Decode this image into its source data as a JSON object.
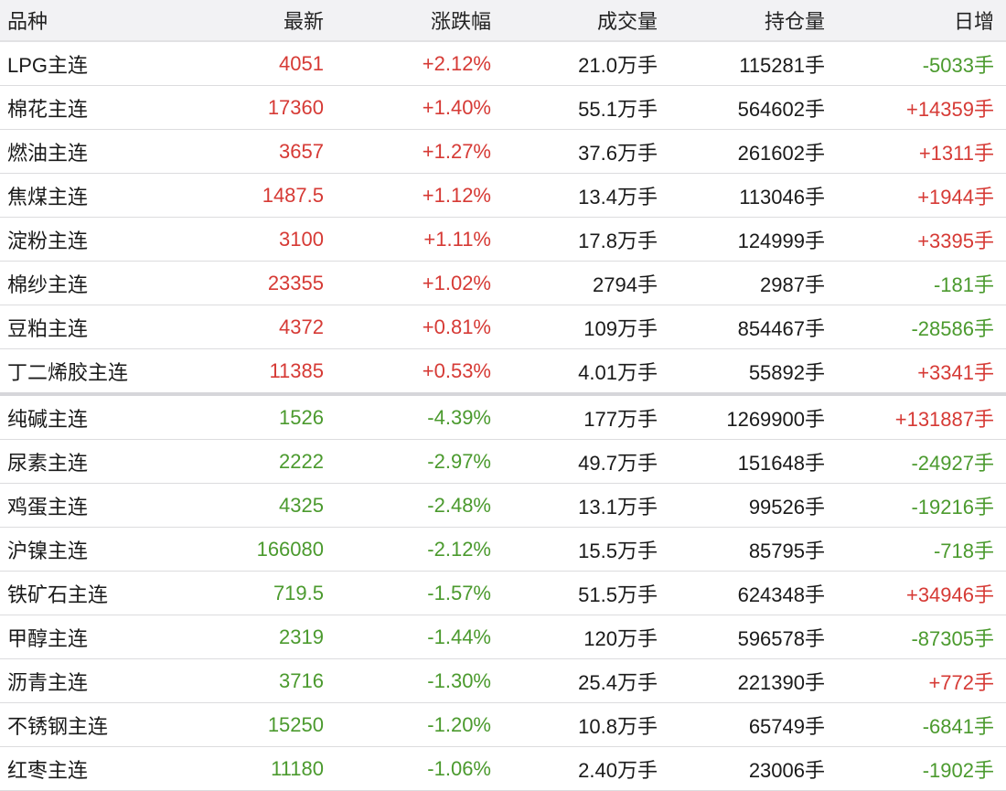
{
  "table": {
    "header": [
      "品种",
      "最新",
      "涨跌幅",
      "成交量",
      "持仓量",
      "日增"
    ],
    "rows": [
      [
        "LPG主连",
        "4051",
        "+2.12%",
        "21.0万手",
        "115281手",
        "-5033手"
      ],
      [
        "棉花主连",
        "17360",
        "+1.40%",
        "55.1万手",
        "564602手",
        "+14359手"
      ],
      [
        "燃油主连",
        "3657",
        "+1.27%",
        "37.6万手",
        "261602手",
        "+1311手"
      ],
      [
        "焦煤主连",
        "1487.5",
        "+1.12%",
        "13.4万手",
        "113046手",
        "+1944手"
      ],
      [
        "淀粉主连",
        "3100",
        "+1.11%",
        "17.8万手",
        "124999手",
        "+3395手"
      ],
      [
        "棉纱主连",
        "23355",
        "+1.02%",
        "2794手",
        "2987手",
        "-181手"
      ],
      [
        "豆粕主连",
        "4372",
        "+0.81%",
        "109万手",
        "854467手",
        "-28586手"
      ],
      [
        "丁二烯胶主连",
        "11385",
        "+0.53%",
        "4.01万手",
        "55892手",
        "+3341手"
      ],
      [
        "纯碱主连",
        "1526",
        "-4.39%",
        "177万手",
        "1269900手",
        "+131887手"
      ],
      [
        "尿素主连",
        "2222",
        "-2.97%",
        "49.7万手",
        "151648手",
        "-24927手"
      ],
      [
        "鸡蛋主连",
        "4325",
        "-2.48%",
        "13.1万手",
        "99526手",
        "-19216手"
      ],
      [
        "沪镍主连",
        "166080",
        "-2.12%",
        "15.5万手",
        "85795手",
        "-718手"
      ],
      [
        "铁矿石主连",
        "719.5",
        "-1.57%",
        "51.5万手",
        "624348手",
        "+34946手"
      ],
      [
        "甲醇主连",
        "2319",
        "-1.44%",
        "120万手",
        "596578手",
        "-87305手"
      ],
      [
        "沥青主连",
        "3716",
        "-1.30%",
        "25.4万手",
        "221390手",
        "+772手"
      ],
      [
        "不锈钢主连",
        "15250",
        "-1.20%",
        "10.8万手",
        "65749手",
        "-6841手"
      ],
      [
        "红枣主连",
        "11180",
        "-1.06%",
        "2.40万手",
        "23006手",
        "-1902手"
      ]
    ]
  }
}
